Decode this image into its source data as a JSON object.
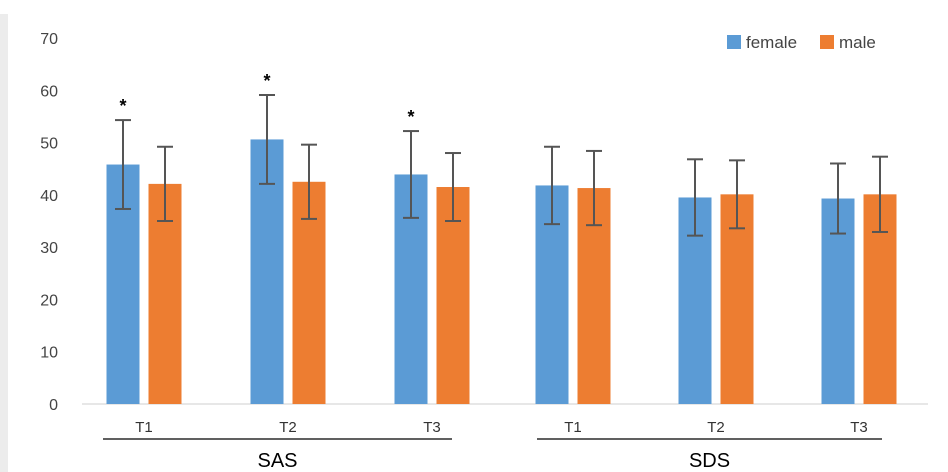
{
  "chart_data": {
    "type": "bar",
    "groups": [
      "SAS",
      "SDS"
    ],
    "categories": [
      "T1",
      "T2",
      "T3",
      "T1",
      "T2",
      "T3"
    ],
    "series": [
      {
        "name": "female",
        "color": "#5b9bd5",
        "values": [
          45.8,
          50.6,
          43.9,
          41.8,
          39.5,
          39.3
        ],
        "error": [
          8.5,
          8.5,
          8.3,
          7.4,
          7.3,
          6.7
        ]
      },
      {
        "name": "male",
        "color": "#ed7d31",
        "values": [
          42.1,
          42.5,
          41.5,
          41.3,
          40.1,
          40.1
        ],
        "error": [
          7.1,
          7.1,
          6.5,
          7.1,
          6.5,
          7.2
        ]
      }
    ],
    "significance": [
      "*",
      "*",
      "*",
      "",
      "",
      ""
    ],
    "ylim": [
      0,
      70
    ],
    "yticks": [
      "0",
      "10",
      "20",
      "30",
      "40",
      "50",
      "60",
      "70"
    ],
    "grid": false,
    "legend_position": "top-right"
  }
}
